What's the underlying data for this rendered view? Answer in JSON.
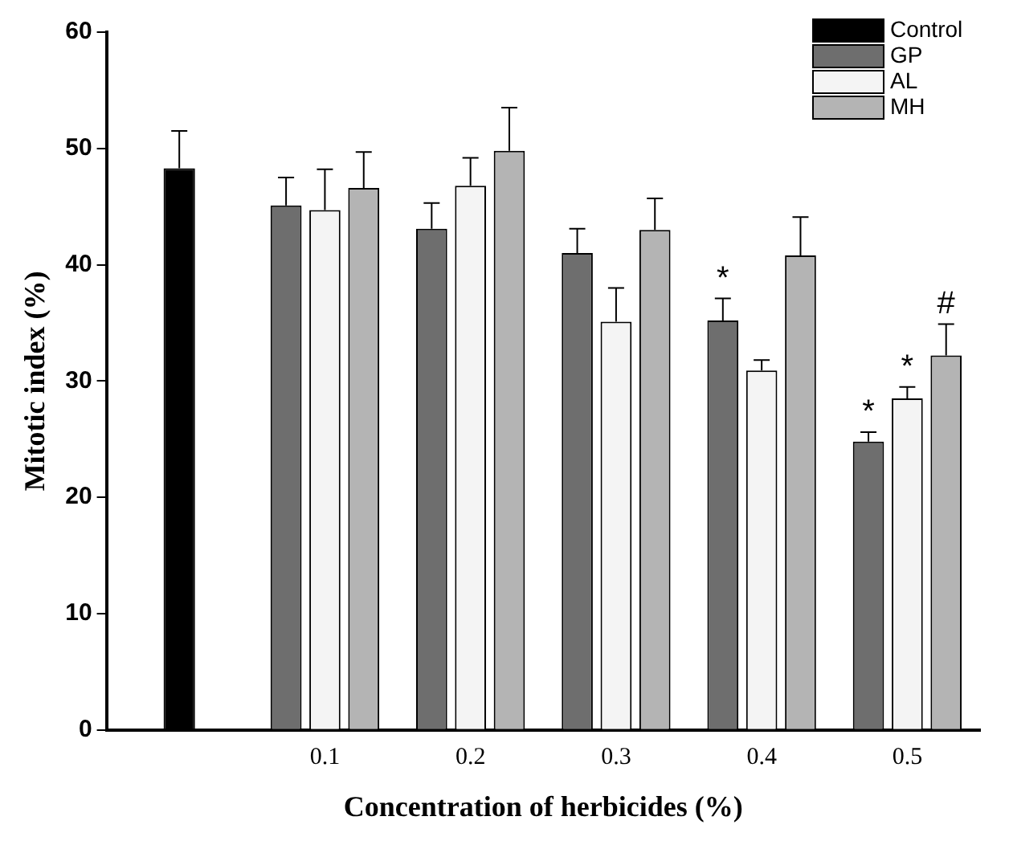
{
  "chart_data": {
    "type": "bar",
    "xlabel": "Concentration of herbicides (%)",
    "ylabel": "Mitotic index (%)",
    "categories": [
      null,
      "0.1",
      "0.2",
      "0.3",
      "0.4",
      "0.5"
    ],
    "series": [
      {
        "name": "Control",
        "color": "#000000",
        "values": [
          48.3,
          null,
          null,
          null,
          null,
          null
        ],
        "errors": [
          [
            48.3,
            51.5
          ],
          null,
          null,
          null,
          null,
          null
        ]
      },
      {
        "name": "GP",
        "color": "#6e6e6e",
        "values": [
          null,
          45.1,
          43.1,
          41.0,
          35.2,
          24.8
        ],
        "errors": [
          null,
          [
            45.1,
            47.5
          ],
          [
            43.1,
            45.3
          ],
          [
            41.0,
            43.1
          ],
          [
            35.2,
            37.1
          ],
          [
            24.8,
            25.6
          ]
        ],
        "value_labels": [
          null,
          null,
          null,
          null,
          "*",
          "*"
        ]
      },
      {
        "name": "AL",
        "color": "#f4f4f4",
        "values": [
          null,
          44.7,
          46.8,
          35.1,
          30.9,
          28.5
        ],
        "errors": [
          null,
          [
            44.7,
            48.2
          ],
          [
            46.8,
            49.2
          ],
          [
            35.1,
            38.0
          ],
          [
            30.9,
            31.8
          ],
          [
            28.5,
            29.5
          ]
        ],
        "value_labels": [
          null,
          null,
          null,
          null,
          null,
          "*"
        ]
      },
      {
        "name": "MH",
        "color": "#b4b4b4",
        "values": [
          null,
          46.6,
          49.8,
          43.0,
          40.8,
          32.2
        ],
        "errors": [
          null,
          [
            46.6,
            49.7
          ],
          [
            49.8,
            53.5
          ],
          [
            43.0,
            45.7
          ],
          [
            40.8,
            44.1
          ],
          [
            32.2,
            34.9
          ]
        ],
        "value_labels": [
          null,
          null,
          null,
          null,
          null,
          "#"
        ]
      }
    ],
    "ylim": [
      0,
      60
    ],
    "yticks": [
      0,
      10,
      20,
      30,
      40,
      50,
      60
    ],
    "grid": false,
    "legend": "top right"
  }
}
